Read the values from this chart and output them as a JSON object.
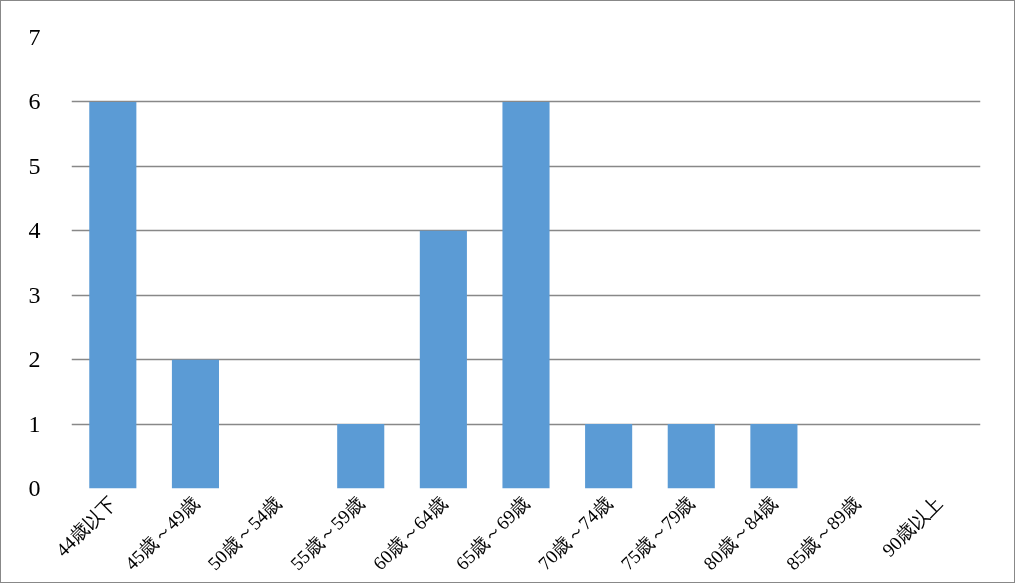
{
  "chart_data": {
    "type": "bar",
    "categories": [
      "44歳以下",
      "45歳～49歳",
      "50歳～54歳",
      "55歳～59歳",
      "60歳～64歳",
      "65歳～69歳",
      "70歳～74歳",
      "75歳～79歳",
      "80歳～84歳",
      "85歳～89歳",
      "90歳以上"
    ],
    "values": [
      6,
      2,
      0,
      1,
      4,
      6,
      1,
      1,
      1,
      0,
      0
    ],
    "color": "#5b9bd5",
    "ylim": [
      0,
      7
    ],
    "yticks": [
      0,
      1,
      2,
      3,
      4,
      5,
      6,
      7
    ],
    "grid": "y"
  }
}
